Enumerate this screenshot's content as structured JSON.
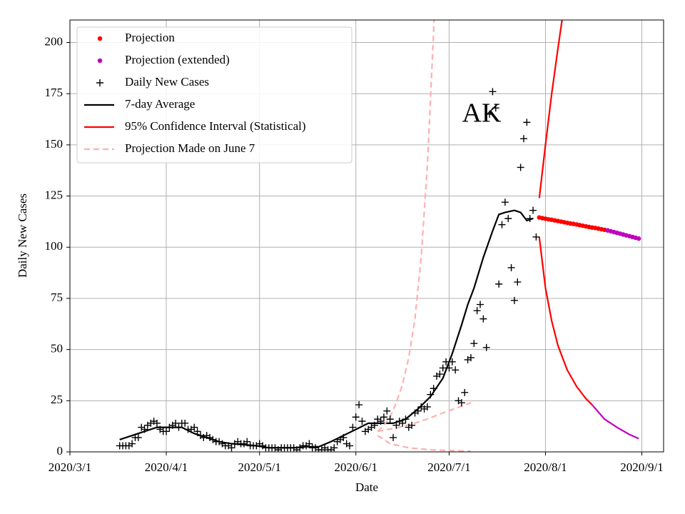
{
  "chart_data": {
    "type": "line",
    "annotation": "AK",
    "xlabel": "Date",
    "ylabel": "Daily New Cases",
    "xlim": [
      "2020-03-01",
      "2020-09-08"
    ],
    "ylim": [
      0,
      211
    ],
    "xticks": [
      {
        "value": "2020-03-01",
        "label": "2020/3/1"
      },
      {
        "value": "2020-04-01",
        "label": "2020/4/1"
      },
      {
        "value": "2020-05-01",
        "label": "2020/5/1"
      },
      {
        "value": "2020-06-01",
        "label": "2020/6/1"
      },
      {
        "value": "2020-07-01",
        "label": "2020/7/1"
      },
      {
        "value": "2020-08-01",
        "label": "2020/8/1"
      },
      {
        "value": "2020-09-01",
        "label": "2020/9/1"
      }
    ],
    "yticks": [
      0,
      25,
      50,
      75,
      100,
      125,
      150,
      175,
      200
    ],
    "grid": true,
    "legend": "upper left",
    "series": [
      {
        "name": "Projection",
        "color": "#ff0000",
        "marker": "dot",
        "x": [
          "2020-07-30",
          "2020-07-31",
          "2020-08-01",
          "2020-08-02",
          "2020-08-03",
          "2020-08-04",
          "2020-08-05",
          "2020-08-06",
          "2020-08-07",
          "2020-08-08",
          "2020-08-09",
          "2020-08-10",
          "2020-08-11",
          "2020-08-12",
          "2020-08-13",
          "2020-08-14",
          "2020-08-15",
          "2020-08-16",
          "2020-08-17",
          "2020-08-18",
          "2020-08-19",
          "2020-08-20"
        ],
        "values": [
          114.5,
          114.2,
          113.9,
          113.6,
          113.4,
          113.1,
          112.8,
          112.5,
          112.2,
          111.9,
          111.6,
          111.4,
          111.1,
          110.8,
          110.5,
          110.2,
          109.9,
          109.6,
          109.4,
          109.1,
          108.8,
          108.5
        ]
      },
      {
        "name": "Projection (extended)",
        "color": "#bf00bf",
        "marker": "dot",
        "x": [
          "2020-08-21",
          "2020-08-22",
          "2020-08-23",
          "2020-08-24",
          "2020-08-25",
          "2020-08-26",
          "2020-08-27",
          "2020-08-28",
          "2020-08-29",
          "2020-08-30",
          "2020-08-31"
        ],
        "values": [
          108.2,
          107.8,
          107.4,
          107.0,
          106.6,
          106.2,
          105.8,
          105.4,
          105.0,
          104.6,
          104.2
        ]
      },
      {
        "name": "Daily New Cases",
        "color": "#000000",
        "marker": "plus",
        "x": [
          "2020-03-17",
          "2020-03-18",
          "2020-03-19",
          "2020-03-20",
          "2020-03-21",
          "2020-03-22",
          "2020-03-23",
          "2020-03-24",
          "2020-03-25",
          "2020-03-26",
          "2020-03-27",
          "2020-03-28",
          "2020-03-29",
          "2020-03-30",
          "2020-03-31",
          "2020-04-01",
          "2020-04-02",
          "2020-04-03",
          "2020-04-04",
          "2020-04-05",
          "2020-04-06",
          "2020-04-07",
          "2020-04-08",
          "2020-04-09",
          "2020-04-10",
          "2020-04-11",
          "2020-04-12",
          "2020-04-13",
          "2020-04-14",
          "2020-04-15",
          "2020-04-16",
          "2020-04-17",
          "2020-04-18",
          "2020-04-19",
          "2020-04-20",
          "2020-04-21",
          "2020-04-22",
          "2020-04-23",
          "2020-04-24",
          "2020-04-25",
          "2020-04-26",
          "2020-04-27",
          "2020-04-28",
          "2020-04-29",
          "2020-04-30",
          "2020-05-01",
          "2020-05-02",
          "2020-05-03",
          "2020-05-04",
          "2020-05-05",
          "2020-05-06",
          "2020-05-07",
          "2020-05-08",
          "2020-05-09",
          "2020-05-10",
          "2020-05-11",
          "2020-05-12",
          "2020-05-13",
          "2020-05-14",
          "2020-05-15",
          "2020-05-16",
          "2020-05-17",
          "2020-05-18",
          "2020-05-19",
          "2020-05-20",
          "2020-05-21",
          "2020-05-22",
          "2020-05-23",
          "2020-05-24",
          "2020-05-25",
          "2020-05-26",
          "2020-05-27",
          "2020-05-28",
          "2020-05-29",
          "2020-05-30",
          "2020-05-31",
          "2020-06-01",
          "2020-06-02",
          "2020-06-03",
          "2020-06-04",
          "2020-06-05",
          "2020-06-06",
          "2020-06-07",
          "2020-06-08",
          "2020-06-09",
          "2020-06-10",
          "2020-06-11",
          "2020-06-12",
          "2020-06-13",
          "2020-06-14",
          "2020-06-15",
          "2020-06-16",
          "2020-06-17",
          "2020-06-18",
          "2020-06-19",
          "2020-06-20",
          "2020-06-21",
          "2020-06-22",
          "2020-06-23",
          "2020-06-24",
          "2020-06-25",
          "2020-06-26",
          "2020-06-27",
          "2020-06-28",
          "2020-06-29",
          "2020-06-30",
          "2020-07-01",
          "2020-07-02",
          "2020-07-03",
          "2020-07-04",
          "2020-07-05",
          "2020-07-06",
          "2020-07-07",
          "2020-07-08",
          "2020-07-09",
          "2020-07-10",
          "2020-07-11",
          "2020-07-12",
          "2020-07-13",
          "2020-07-14",
          "2020-07-15",
          "2020-07-16",
          "2020-07-17",
          "2020-07-18",
          "2020-07-19",
          "2020-07-20",
          "2020-07-21",
          "2020-07-22",
          "2020-07-23",
          "2020-07-24",
          "2020-07-25",
          "2020-07-26",
          "2020-07-27",
          "2020-07-28",
          "2020-07-29"
        ],
        "values": [
          3,
          3,
          3,
          3,
          4,
          7,
          7,
          12,
          11,
          13,
          14,
          15,
          14,
          11,
          10,
          10,
          12,
          13,
          14,
          12,
          14,
          14,
          11,
          11,
          12,
          10,
          8,
          7,
          8,
          7,
          6,
          5,
          5,
          4,
          3,
          3,
          2,
          4,
          5,
          4,
          4,
          5,
          3,
          3,
          3,
          4,
          3,
          2,
          2,
          2,
          2,
          1,
          2,
          2,
          2,
          2,
          2,
          1,
          2,
          3,
          3,
          4,
          2,
          2,
          1,
          1,
          2,
          1,
          1,
          2,
          5,
          6,
          7,
          4,
          3,
          12,
          17,
          23,
          15,
          10,
          11,
          12,
          13,
          16,
          15,
          17,
          20,
          16,
          7,
          13,
          15,
          14,
          16,
          12,
          13,
          19,
          20,
          22,
          21,
          22,
          28,
          31,
          37,
          38,
          41,
          44,
          41,
          44,
          40,
          25,
          24,
          29,
          45,
          46,
          53,
          69,
          72,
          65,
          51,
          165,
          176,
          168,
          82,
          111,
          122,
          114,
          90,
          74,
          83,
          139,
          153,
          161,
          114,
          118,
          105
        ]
      },
      {
        "name": "7-day Average",
        "color": "#000000",
        "line": "solid",
        "x": [
          "2020-03-17",
          "2020-03-21",
          "2020-03-25",
          "2020-03-29",
          "2020-04-02",
          "2020-04-06",
          "2020-04-10",
          "2020-04-14",
          "2020-04-18",
          "2020-04-22",
          "2020-04-26",
          "2020-04-30",
          "2020-05-04",
          "2020-05-08",
          "2020-05-12",
          "2020-05-16",
          "2020-05-20",
          "2020-05-24",
          "2020-05-28",
          "2020-06-01",
          "2020-06-05",
          "2020-06-09",
          "2020-06-13",
          "2020-06-17",
          "2020-06-21",
          "2020-06-25",
          "2020-06-29",
          "2020-07-02",
          "2020-07-05",
          "2020-07-07",
          "2020-07-09",
          "2020-07-12",
          "2020-07-15",
          "2020-07-17",
          "2020-07-19",
          "2020-07-22",
          "2020-07-24",
          "2020-07-26",
          "2020-07-28"
        ],
        "values": [
          6,
          8,
          10,
          12,
          12,
          12,
          9,
          7,
          5,
          4,
          3.5,
          3,
          2,
          2,
          2,
          2.5,
          2.5,
          5,
          8,
          11,
          14,
          14,
          14,
          16,
          21,
          27,
          36,
          48,
          62,
          72,
          80,
          95,
          108,
          116,
          117,
          118,
          117,
          113,
          114
        ]
      },
      {
        "name": "95% Confidence Interval (Statistical)",
        "color": "#ff0000",
        "line": "solid",
        "x": [
          "2020-07-30",
          "2020-08-01",
          "2020-08-03",
          "2020-08-05",
          "2020-08-07"
        ],
        "values": [
          124,
          150,
          175,
          197,
          218
        ]
      },
      {
        "name": "Projection Made on June 7",
        "color": "#ffb0b0",
        "line": "dashed",
        "x": [
          "2020-06-08",
          "2020-06-10",
          "2020-06-12",
          "2020-06-14",
          "2020-06-16",
          "2020-06-18",
          "2020-06-20",
          "2020-06-22",
          "2020-06-24",
          "2020-06-26",
          "2020-06-27"
        ],
        "values": [
          10,
          13,
          17,
          24,
          33,
          46,
          65,
          95,
          140,
          205,
          250
        ]
      },
      {
        "color": "#ff0000",
        "line": "solid",
        "x": [
          "2020-07-30",
          "2020-08-01",
          "2020-08-03",
          "2020-08-05",
          "2020-08-08",
          "2020-08-11",
          "2020-08-14",
          "2020-08-16"
        ],
        "values": [
          105,
          80,
          64,
          52,
          40,
          32,
          26,
          23
        ]
      },
      {
        "color": "#bf00bf",
        "line": "solid",
        "x": [
          "2020-08-16",
          "2020-08-20",
          "2020-08-24",
          "2020-08-28",
          "2020-08-31"
        ],
        "values": [
          23,
          16,
          12,
          8.5,
          6.5
        ]
      },
      {
        "color": "#ffb0b0",
        "line": "dashed",
        "x": [
          "2020-06-08",
          "2020-06-15",
          "2020-06-22",
          "2020-06-29",
          "2020-07-08"
        ],
        "values": [
          10,
          12,
          15,
          19,
          24
        ]
      },
      {
        "color": "#ffb0b0",
        "line": "dashed",
        "x": [
          "2020-06-08",
          "2020-06-12",
          "2020-06-18",
          "2020-06-25",
          "2020-07-08"
        ],
        "values": [
          8,
          4,
          2,
          1,
          0.3
        ]
      }
    ]
  }
}
